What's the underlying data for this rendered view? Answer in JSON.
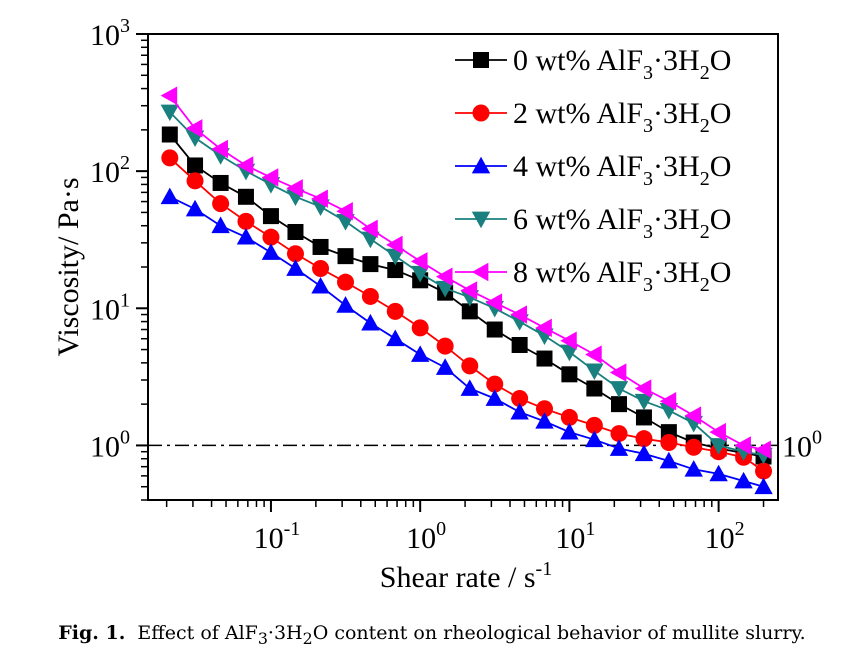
{
  "chart_data": {
    "type": "line",
    "x_scale": "log",
    "y_scale": "log",
    "xlabel_main": "Shear rate / s",
    "xlabel_sup": "-1",
    "ylabel": "Viscosity/ Pa·s",
    "xlim": [
      0.015,
      250
    ],
    "ylim": [
      0.4,
      1000
    ],
    "x_ticks": [
      {
        "value": 0.1,
        "base": "10",
        "exp": "-1"
      },
      {
        "value": 1,
        "base": "10",
        "exp": "0"
      },
      {
        "value": 10,
        "base": "10",
        "exp": "1"
      },
      {
        "value": 100,
        "base": "10",
        "exp": "2"
      }
    ],
    "y_ticks": [
      {
        "value": 1,
        "base": "10",
        "exp": "0"
      },
      {
        "value": 10,
        "base": "10",
        "exp": "1"
      },
      {
        "value": 100,
        "base": "10",
        "exp": "2"
      },
      {
        "value": 1000,
        "base": "10",
        "exp": "3"
      }
    ],
    "reference_line": {
      "y": 1,
      "label_base": "10",
      "label_exp": "0",
      "style": "dash-dot"
    },
    "legend_position": "top-right",
    "grid": false,
    "x": [
      0.021,
      0.031,
      0.046,
      0.068,
      0.1,
      0.146,
      0.215,
      0.316,
      0.464,
      0.681,
      1.0,
      1.47,
      2.15,
      3.16,
      4.64,
      6.81,
      10.0,
      14.7,
      21.5,
      31.6,
      46.4,
      68.1,
      100,
      147,
      200
    ],
    "series": [
      {
        "name_pre": "0 wt% AlF",
        "marker": "square",
        "color": "#000000",
        "values": [
          185,
          110,
          82,
          65,
          47,
          36,
          28,
          24,
          21,
          19,
          16,
          13,
          9.5,
          7,
          5.4,
          4.3,
          3.3,
          2.6,
          2.0,
          1.6,
          1.25,
          1.05,
          0.95,
          0.88,
          0.83
        ]
      },
      {
        "name_pre": "2 wt% AlF",
        "marker": "circle",
        "color": "#ff0000",
        "values": [
          125,
          85,
          58,
          43,
          33,
          25,
          19.5,
          15.5,
          12.2,
          9.5,
          7.2,
          5.3,
          3.8,
          2.8,
          2.2,
          1.85,
          1.6,
          1.4,
          1.22,
          1.12,
          1.05,
          0.97,
          0.9,
          0.82,
          0.65
        ]
      },
      {
        "name_pre": "4 wt% AlF",
        "marker": "triangle-up",
        "color": "#0000ff",
        "values": [
          65,
          53,
          40,
          33,
          25.5,
          19.5,
          14.5,
          10.5,
          7.8,
          6.0,
          4.6,
          3.7,
          2.6,
          2.2,
          1.75,
          1.5,
          1.25,
          1.1,
          0.95,
          0.87,
          0.77,
          0.67,
          0.62,
          0.55,
          0.5
        ]
      },
      {
        "name_pre": "6 wt% AlF",
        "marker": "triangle-down",
        "color": "#1a7f7f",
        "values": [
          270,
          175,
          130,
          100,
          80,
          65,
          55,
          43,
          32,
          24,
          18,
          14,
          12,
          10,
          8,
          6.3,
          4.8,
          3.5,
          2.6,
          2.1,
          1.8,
          1.45,
          1.0,
          0.9,
          0.85
        ]
      },
      {
        "name_pre": "8 wt% AlF",
        "marker": "triangle-left",
        "color": "#ff00ff",
        "values": [
          355,
          205,
          145,
          110,
          90,
          75,
          63,
          51,
          38,
          29,
          22,
          17,
          13.5,
          11,
          9,
          7.2,
          5.8,
          4.6,
          3.4,
          2.6,
          2.1,
          1.65,
          1.25,
          1.0,
          0.93
        ]
      }
    ],
    "legend_suffix": {
      "sub3": "3",
      "mid": "·3H",
      "sub2": "2",
      "end": "O"
    }
  },
  "caption": {
    "label": "Fig. 1.",
    "text_pre": "Effect of AlF",
    "sub_a": "3",
    "text_mid": "·3H",
    "sub_b": "2",
    "text_post": "O content on rheological behavior of mullite slurry."
  }
}
